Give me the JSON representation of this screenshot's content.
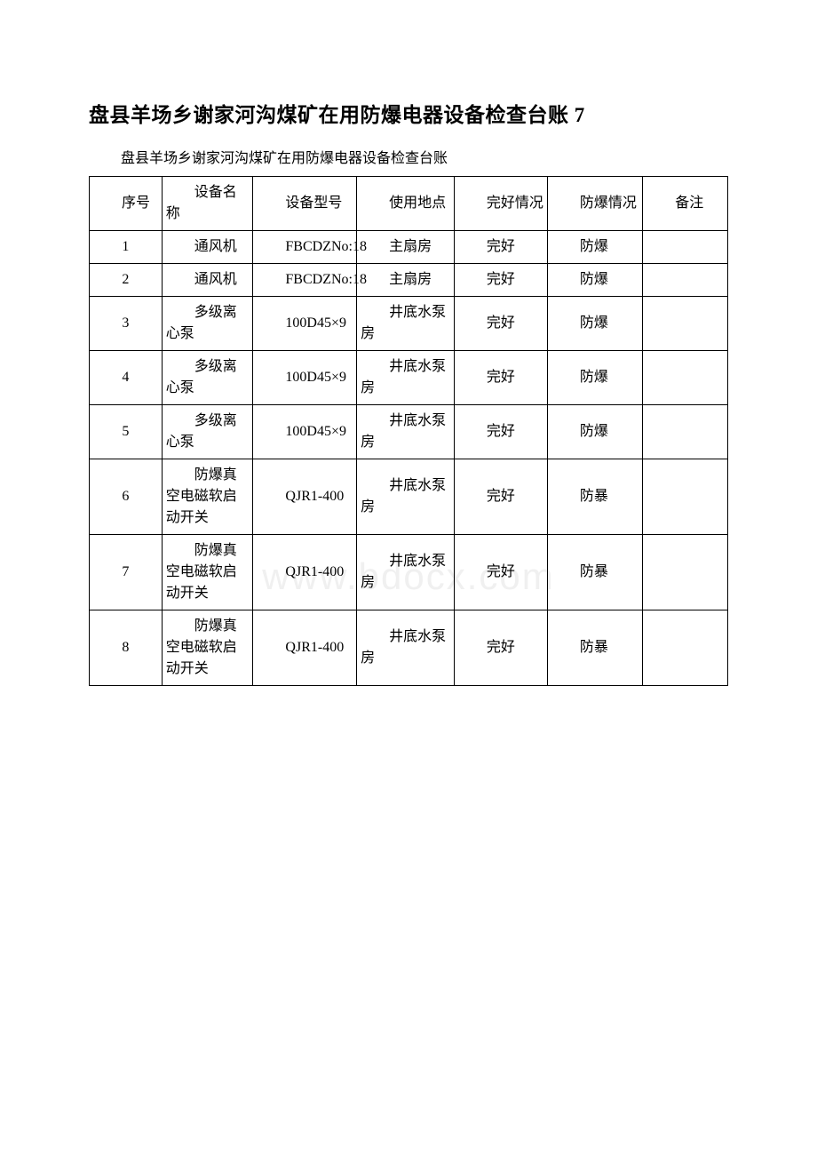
{
  "title": "盘县羊场乡谢家河沟煤矿在用防爆电器设备检查台账 7",
  "subtitle": "盘县羊场乡谢家河沟煤矿在用防爆电器设备检查台账",
  "watermark": "www.bdocx.com",
  "columns": {
    "seq": "序号",
    "name": "设备名称",
    "model": "设备型号",
    "location": "使用地点",
    "condition": "完好情况",
    "explosion": "防爆情况",
    "remark": "备注"
  },
  "col_widths": [
    "70",
    "88",
    "100",
    "94",
    "90",
    "92",
    "82"
  ],
  "rows": [
    {
      "seq": "1",
      "name": "通风机",
      "model": "FBCDZNo:18",
      "location": "主扇房",
      "condition": "完好",
      "explosion": "防爆",
      "remark": ""
    },
    {
      "seq": "2",
      "name": "通风机",
      "model": "FBCDZNo:18",
      "location": "主扇房",
      "condition": "完好",
      "explosion": "防爆",
      "remark": ""
    },
    {
      "seq": "3",
      "name": "多级离心泵",
      "model": "100D45×9",
      "location": "井底水泵房",
      "condition": "完好",
      "explosion": "防爆",
      "remark": ""
    },
    {
      "seq": "4",
      "name": "多级离心泵",
      "model": "100D45×9",
      "location": "井底水泵房",
      "condition": "完好",
      "explosion": "防爆",
      "remark": ""
    },
    {
      "seq": "5",
      "name": "多级离心泵",
      "model": "100D45×9",
      "location": "井底水泵房",
      "condition": "完好",
      "explosion": "防爆",
      "remark": ""
    },
    {
      "seq": "6",
      "name": "防爆真空电磁软启动开关",
      "model": "QJR1-400",
      "location": "井底水泵房",
      "condition": "完好",
      "explosion": "防暴",
      "remark": ""
    },
    {
      "seq": "7",
      "name": "防爆真空电磁软启动开关",
      "model": "QJR1-400",
      "location": "井底水泵房",
      "condition": "完好",
      "explosion": "防暴",
      "remark": ""
    },
    {
      "seq": "8",
      "name": "防爆真空电磁软启动开关",
      "model": "QJR1-400",
      "location": "井底水泵房",
      "condition": "完好",
      "explosion": "防暴",
      "remark": ""
    }
  ]
}
